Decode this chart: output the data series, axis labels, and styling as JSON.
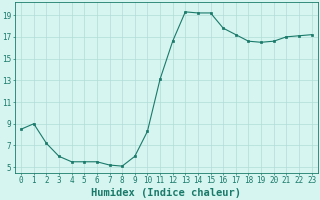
{
  "x": [
    0,
    1,
    2,
    3,
    4,
    5,
    6,
    7,
    8,
    9,
    10,
    11,
    12,
    13,
    14,
    15,
    16,
    17,
    18,
    19,
    20,
    21,
    22,
    23
  ],
  "y": [
    8.5,
    9.0,
    7.2,
    6.0,
    5.5,
    5.5,
    5.5,
    5.2,
    5.1,
    6.0,
    8.3,
    13.1,
    16.6,
    19.3,
    19.2,
    19.2,
    17.8,
    17.2,
    16.6,
    16.5,
    16.6,
    17.0,
    17.1,
    17.2
  ],
  "line_color": "#1a7a6a",
  "marker_color": "#1a7a6a",
  "bg_color": "#d6f5f0",
  "grid_color": "#b0ddd8",
  "xlabel": "Humidex (Indice chaleur)",
  "ylabel_ticks": [
    5,
    7,
    9,
    11,
    13,
    15,
    17,
    19
  ],
  "xlim": [
    -0.5,
    23.5
  ],
  "ylim": [
    4.5,
    20.2
  ],
  "xtick_labels": [
    "0",
    "1",
    "2",
    "3",
    "4",
    "5",
    "6",
    "7",
    "8",
    "9",
    "10",
    "11",
    "12",
    "13",
    "14",
    "15",
    "16",
    "17",
    "18",
    "19",
    "20",
    "21",
    "22",
    "23"
  ],
  "axis_fontsize": 6.5,
  "tick_fontsize": 5.5,
  "xlabel_fontsize": 7.5
}
